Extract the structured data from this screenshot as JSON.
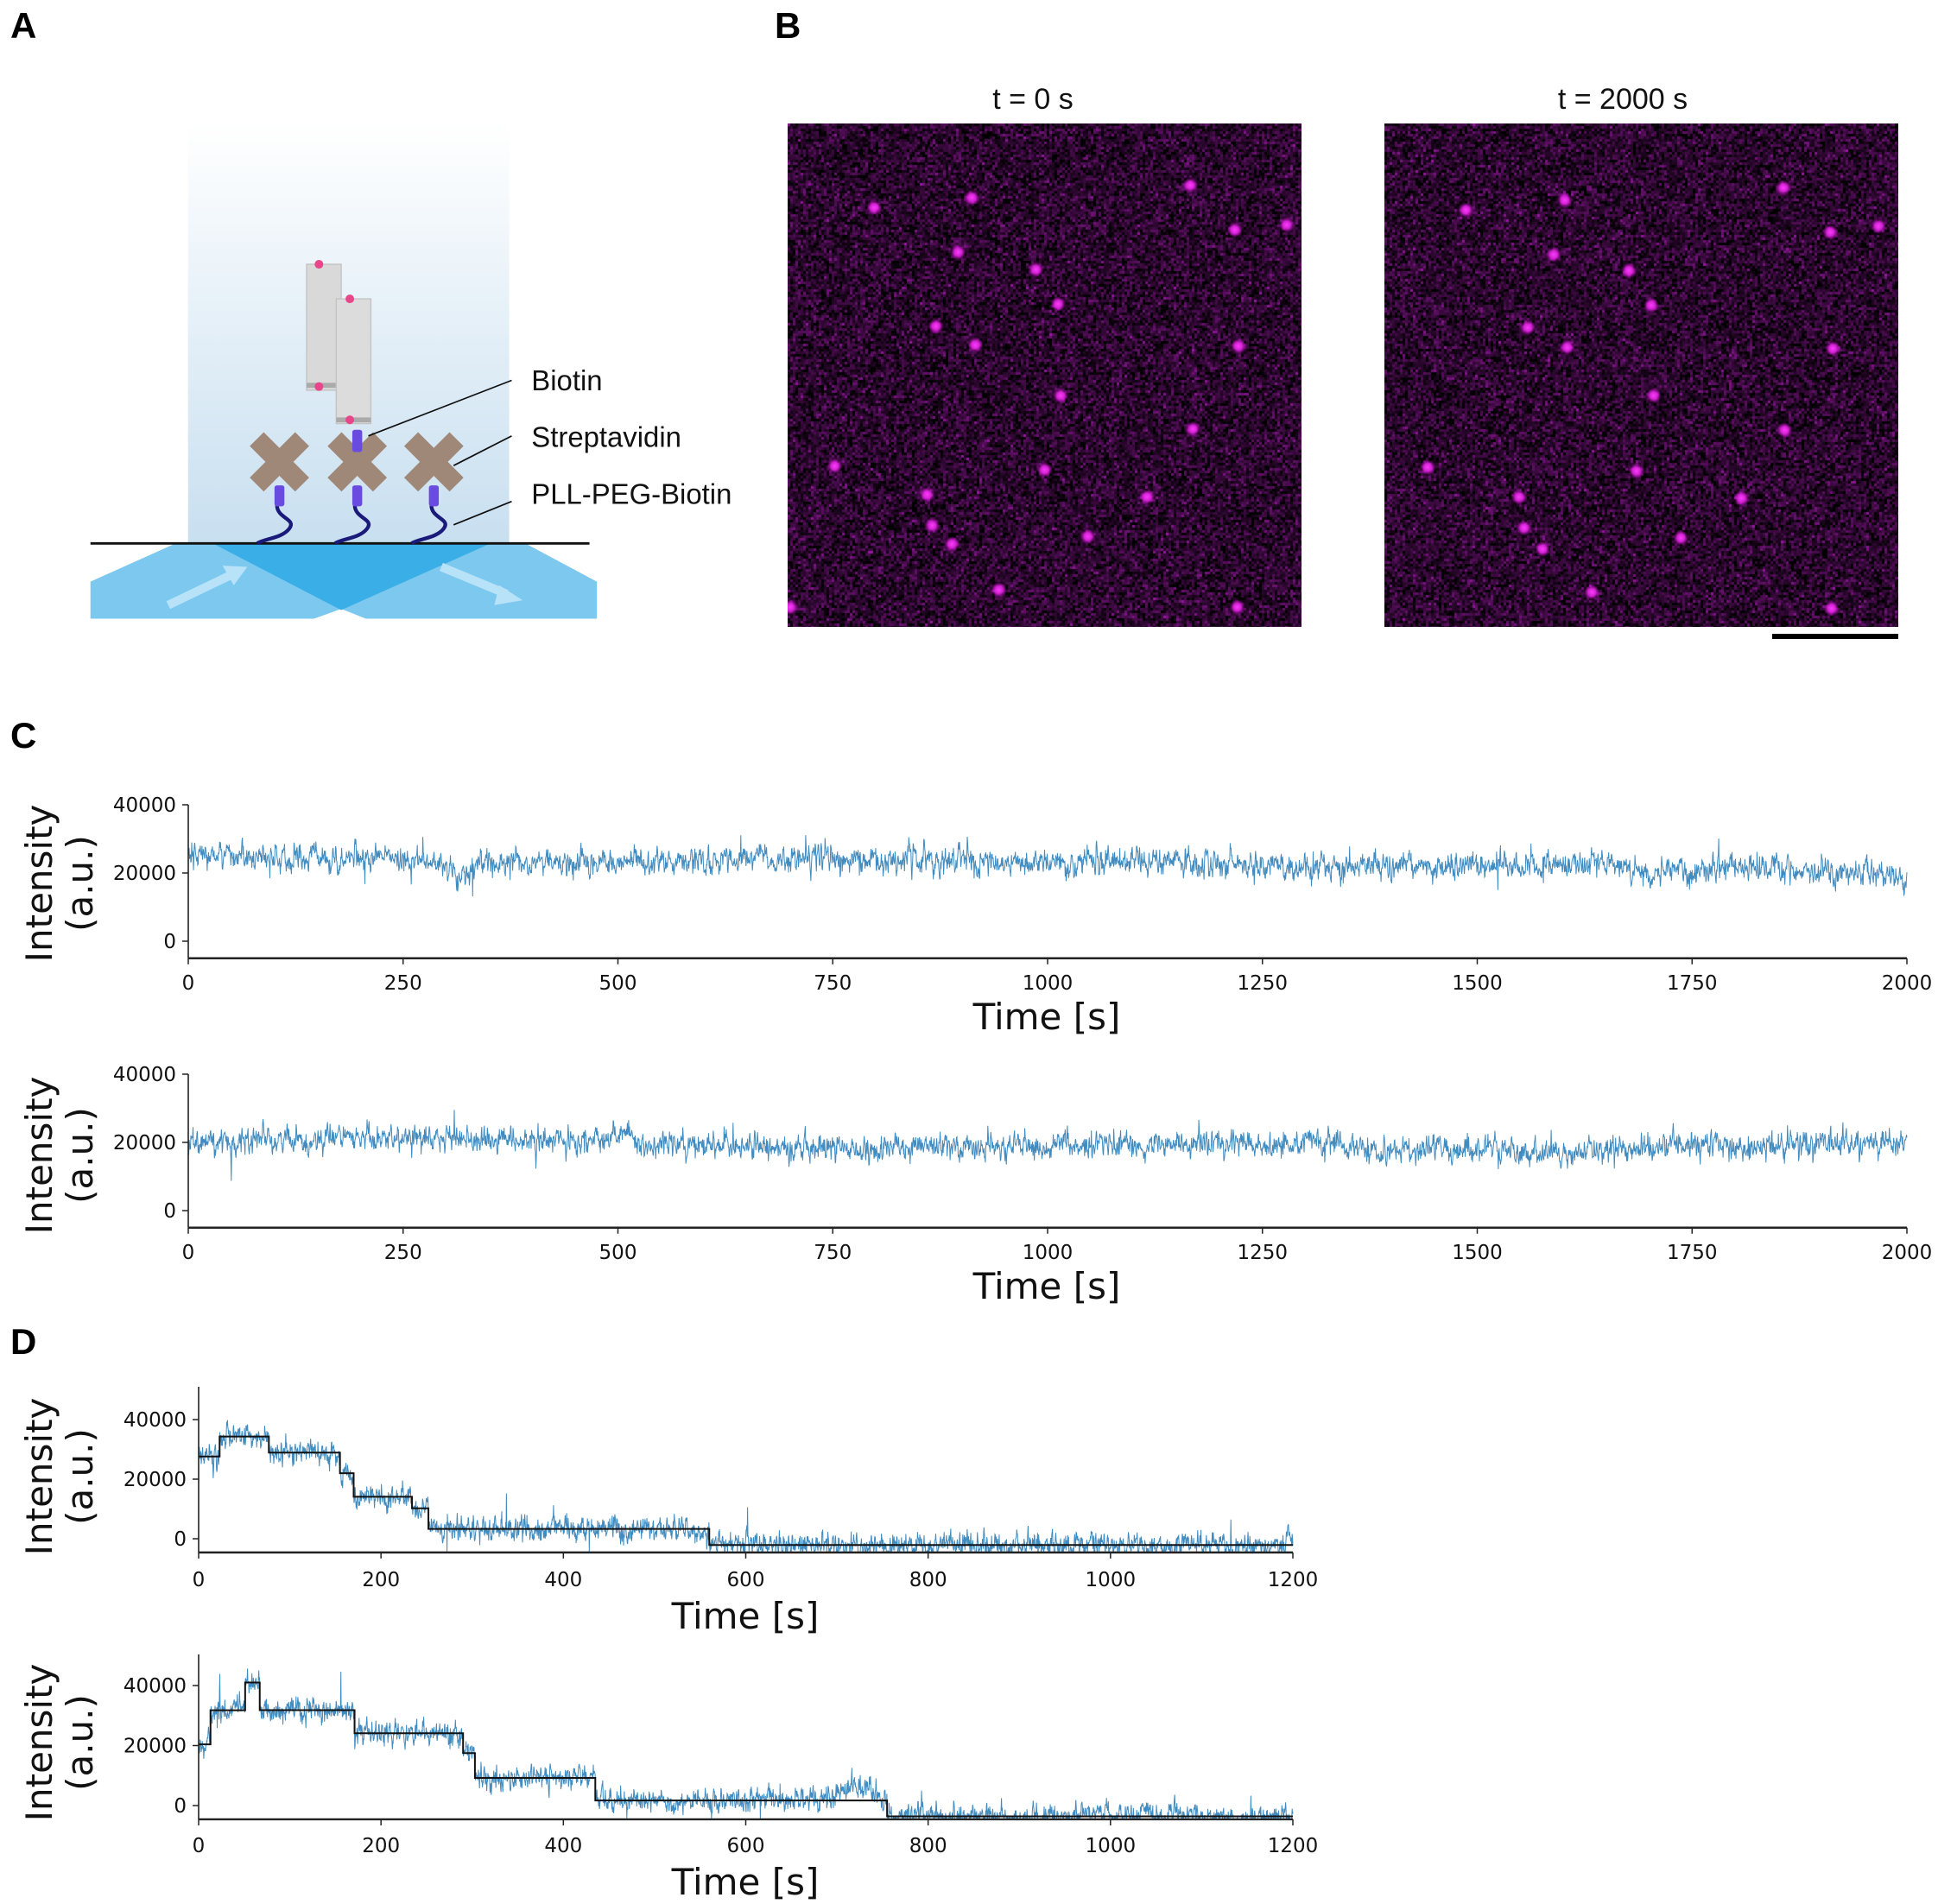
{
  "panels": {
    "A": {
      "label": "A",
      "annotations": [
        "Biotin",
        "Streptavidin",
        "PLL-PEG-Biotin"
      ],
      "colors": {
        "evanescent_field": "#cfe3f2",
        "beam": "#7cc8ee",
        "beam_overlap": "#3aaee6",
        "streptavidin": "#a08878",
        "biotin": "#6a4be0",
        "linker": "#1a1a7a",
        "rod": "#d9d9d9",
        "fluorophore": "#e8468a"
      }
    },
    "B": {
      "label": "B",
      "images": [
        {
          "title": "t = 0 s"
        },
        {
          "title": "t = 2000 s"
        }
      ],
      "colors": {
        "background": "#1a0a1c",
        "spot": "#ff33ff"
      },
      "scale_bar": true
    },
    "C": {
      "label": "C"
    },
    "D": {
      "label": "D"
    }
  },
  "chart_data": [
    {
      "panel": "C",
      "type": "line",
      "xlabel": "Time [s]",
      "ylabel_lines": [
        "Intensity",
        "(a.u.)"
      ],
      "xlim": [
        0,
        2000
      ],
      "ylim": [
        -5000,
        40000
      ],
      "xticks": [
        "0",
        "250",
        "500",
        "750",
        "1000",
        "1250",
        "1500",
        "1750",
        "2000"
      ],
      "yticks": [
        "0",
        "20000",
        "40000"
      ],
      "color": "#1f77b4",
      "trace_baseline": [
        [
          0,
          25500
        ],
        [
          250,
          24000
        ],
        [
          300,
          22500
        ],
        [
          322,
          18000
        ],
        [
          340,
          23500
        ],
        [
          480,
          22500
        ],
        [
          660,
          24500
        ],
        [
          1000,
          23000
        ],
        [
          1018,
          25000
        ],
        [
          1025,
          19500
        ],
        [
          1040,
          24000
        ],
        [
          1250,
          22000
        ],
        [
          1500,
          21500
        ],
        [
          1650,
          23000
        ],
        [
          1700,
          20000
        ],
        [
          1800,
          22000
        ],
        [
          2000,
          18500
        ]
      ],
      "trace_noise_sd": 2300
    },
    {
      "panel": "C",
      "type": "line",
      "xlabel": "Time [s]",
      "ylabel_lines": [
        "Intensity",
        "(a.u.)"
      ],
      "xlim": [
        0,
        2000
      ],
      "ylim": [
        -5000,
        40000
      ],
      "xticks": [
        "0",
        "250",
        "500",
        "750",
        "1000",
        "1250",
        "1500",
        "1750",
        "2000"
      ],
      "yticks": [
        "0",
        "20000",
        "40000"
      ],
      "color": "#1f77b4",
      "trace_baseline": [
        [
          0,
          20000
        ],
        [
          250,
          21500
        ],
        [
          400,
          20500
        ],
        [
          490,
          20000
        ],
        [
          515,
          23500
        ],
        [
          525,
          19000
        ],
        [
          750,
          18500
        ],
        [
          1000,
          19000
        ],
        [
          1250,
          19500
        ],
        [
          1450,
          18000
        ],
        [
          1640,
          17000
        ],
        [
          1700,
          19000
        ],
        [
          2000,
          19500
        ]
      ],
      "trace_noise_sd": 2300
    },
    {
      "panel": "D",
      "type": "line",
      "xlabel": "Time [s]",
      "ylabel_lines": [
        "Intensity",
        "(a.u.)"
      ],
      "xlim": [
        0,
        1200
      ],
      "ylim": [
        -4600,
        51000
      ],
      "xticks": [
        "0",
        "200",
        "400",
        "600",
        "800",
        "1000",
        "1200"
      ],
      "yticks": [
        "0",
        "20000",
        "40000"
      ],
      "color": "#1f77b4",
      "step_fit_color": "#111111",
      "step_fit": [
        [
          0,
          23,
          27600
        ],
        [
          23,
          77,
          34300
        ],
        [
          77,
          155,
          28900
        ],
        [
          155,
          170,
          22000
        ],
        [
          170,
          234,
          14100
        ],
        [
          234,
          252,
          10200
        ],
        [
          252,
          560,
          3300
        ],
        [
          560,
          1200,
          -2100
        ]
      ],
      "trace_noise_sd": 2400
    },
    {
      "panel": "D",
      "type": "line",
      "xlabel": "Time [s]",
      "ylabel_lines": [
        "Intensity",
        "(a.u.)"
      ],
      "xlim": [
        0,
        1200
      ],
      "ylim": [
        -4600,
        51000
      ],
      "xticks": [
        "0",
        "200",
        "400",
        "600",
        "800",
        "1000",
        "1200"
      ],
      "yticks": [
        "0",
        "20000",
        "40000"
      ],
      "color": "#1f77b4",
      "step_fit_color": "#111111",
      "step_fit": [
        [
          0,
          13,
          20400
        ],
        [
          13,
          51,
          31750
        ],
        [
          51,
          67,
          41000
        ],
        [
          67,
          171,
          31800
        ],
        [
          171,
          290,
          24100
        ],
        [
          290,
          303,
          17500
        ],
        [
          303,
          435,
          9200
        ],
        [
          435,
          755,
          1700
        ],
        [
          755,
          1200,
          -3600
        ]
      ],
      "trace_noise_sd": 2400
    }
  ]
}
